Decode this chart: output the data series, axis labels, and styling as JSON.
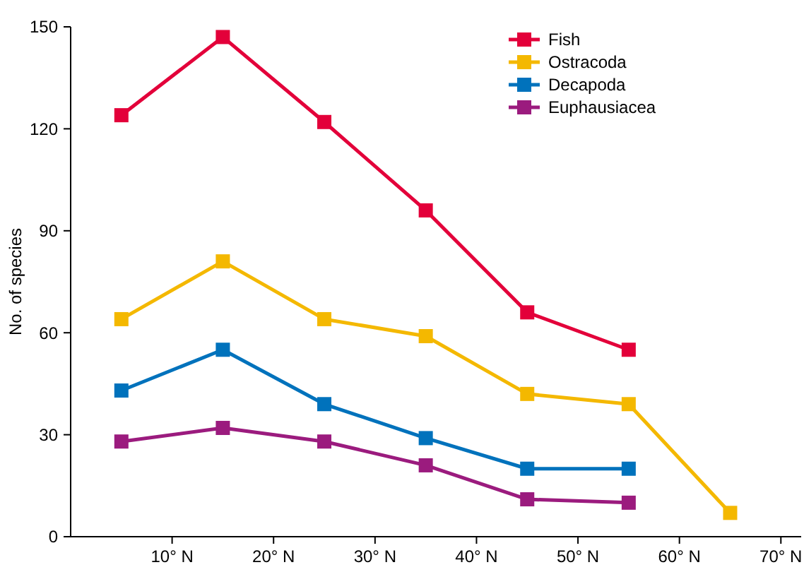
{
  "chart_data": {
    "type": "line",
    "ylabel": "No. of species",
    "x": [
      5,
      15,
      25,
      35,
      45,
      55,
      65
    ],
    "series": [
      {
        "name": "Fish",
        "color": "#e3003a",
        "values": [
          124,
          147,
          122,
          96,
          66,
          55,
          null
        ]
      },
      {
        "name": "Ostracoda",
        "color": "#f4b800",
        "values": [
          64,
          81,
          64,
          59,
          42,
          39,
          7
        ]
      },
      {
        "name": "Decapoda",
        "color": "#0072bc",
        "values": [
          43,
          55,
          39,
          29,
          20,
          20,
          null
        ]
      },
      {
        "name": "Euphausiacea",
        "color": "#9b1b7e",
        "values": [
          28,
          32,
          28,
          21,
          11,
          10,
          null
        ]
      }
    ],
    "xlim": [
      0,
      72
    ],
    "xticks": [
      {
        "value": 10,
        "label": "10° N"
      },
      {
        "value": 20,
        "label": "20° N"
      },
      {
        "value": 30,
        "label": "30° N"
      },
      {
        "value": 40,
        "label": "40° N"
      },
      {
        "value": 50,
        "label": "50° N"
      },
      {
        "value": 60,
        "label": "60° N"
      },
      {
        "value": 70,
        "label": "70° N"
      }
    ],
    "ylim": [
      0,
      150
    ],
    "yticks": [
      0,
      30,
      60,
      90,
      120,
      150
    ],
    "legend": "top right",
    "marker": "square",
    "line_style": "solid",
    "grid": false
  }
}
